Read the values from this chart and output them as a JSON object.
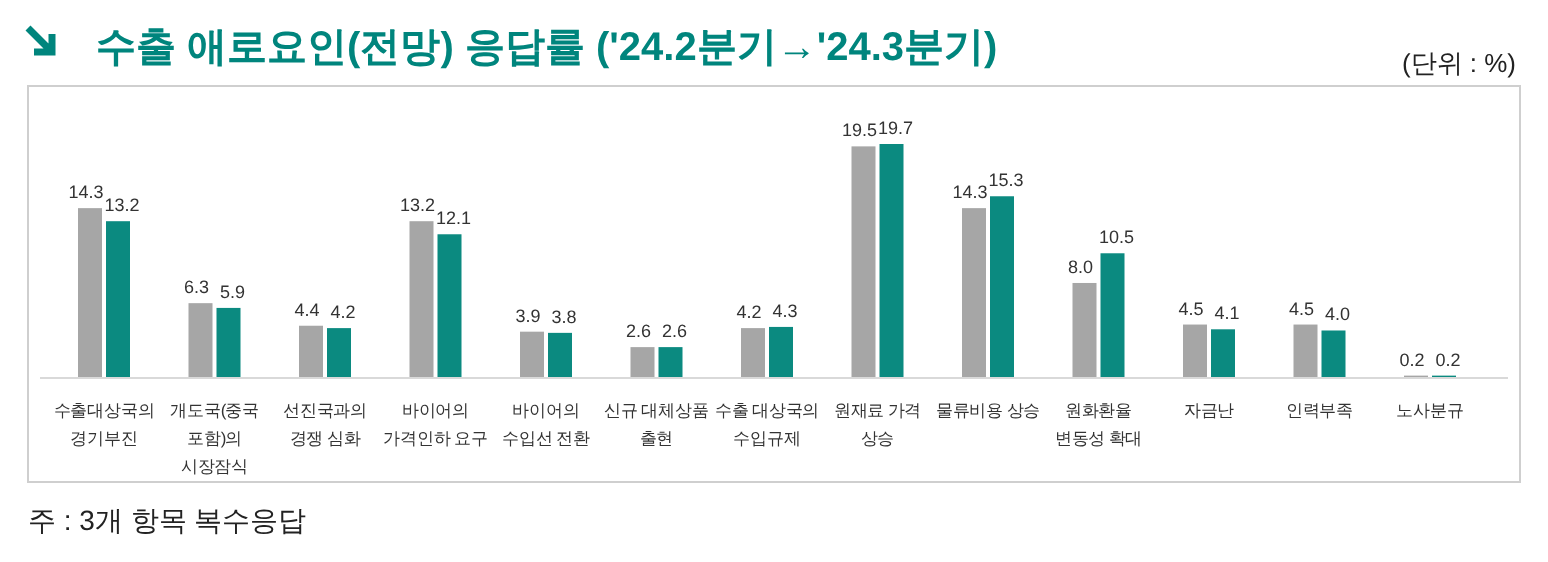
{
  "chart_data": {
    "type": "bar",
    "title": "수출 애로요인(전망) 응답률 ('24.2분기→'24.3분기)",
    "subtitle": "(단위 : %)",
    "categories": [
      "수출대상국의\n경기부진",
      "개도국(중국\n포함)의\n시장잠식",
      "선진국과의\n경쟁 심화",
      "바이어의\n가격인하 요구",
      "바이어의\n수입선 전환",
      "신규 대체상품\n출현",
      "수출 대상국의\n수입규제",
      "원재료 가격\n상승",
      "물류비용 상승",
      "원화환율\n변동성 확대",
      "자금난",
      "인력부족",
      "노사분규"
    ],
    "series": [
      {
        "color": "#a6a6a6",
        "values": [
          14.3,
          6.3,
          4.4,
          13.2,
          3.9,
          2.6,
          4.2,
          19.5,
          14.3,
          8.0,
          4.5,
          4.5,
          0.2
        ],
        "value_labels": [
          "14.3",
          "6.3",
          "4.4",
          "13.2",
          "3.9",
          "2.6",
          "4.2",
          "19.5",
          "14.3",
          "8.0",
          "4.5",
          "4.5",
          "0.2"
        ]
      },
      {
        "color": "#0b8a80",
        "values": [
          13.2,
          5.9,
          4.2,
          12.1,
          3.8,
          2.6,
          4.3,
          19.7,
          15.3,
          10.5,
          4.1,
          4.0,
          0.2
        ],
        "value_labels": [
          "13.2",
          "5.9",
          "4.2",
          "12.1",
          "3.8",
          "2.6",
          "4.3",
          "19.7",
          "15.3",
          "10.5",
          "4.1",
          "4.0",
          "0.2"
        ]
      }
    ],
    "grid": false,
    "annotations": [
      "주 : 3개 항목 복수응답"
    ]
  }
}
